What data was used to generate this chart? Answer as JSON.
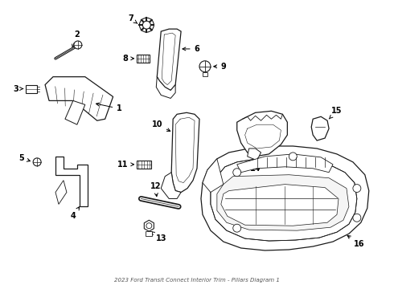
{
  "title": "2023 Ford Transit Connect Interior Trim - Pillars Diagram 1",
  "bg_color": "#ffffff",
  "line_color": "#1a1a1a",
  "figsize": [
    4.9,
    3.6
  ],
  "dpi": 100
}
